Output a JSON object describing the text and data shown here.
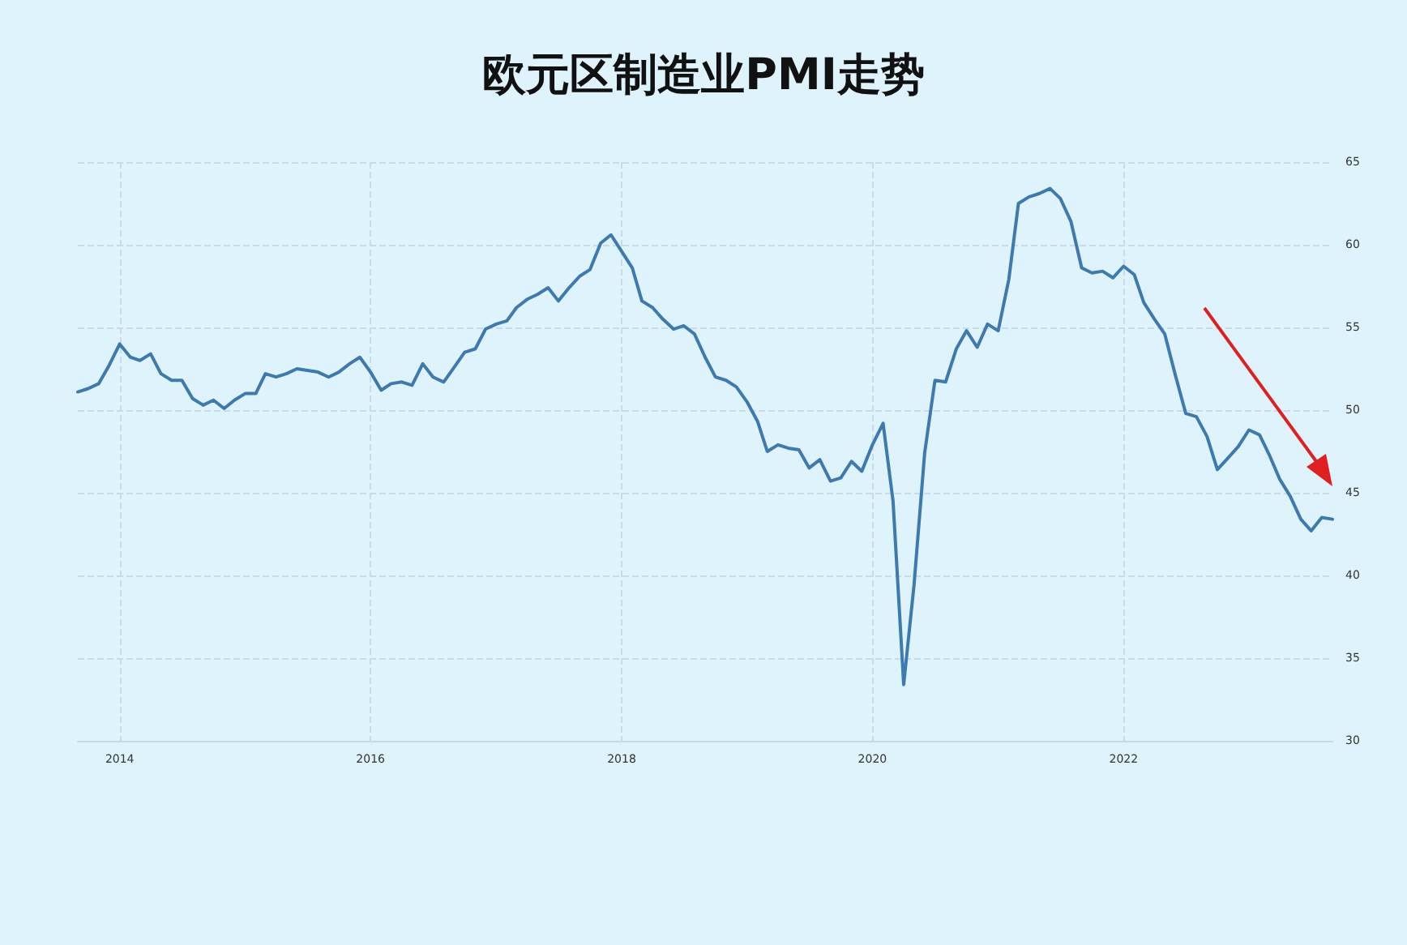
{
  "chart_data": {
    "type": "line",
    "title": "欧元区制造业PMI走势",
    "x": [
      "2013-09",
      "2013-10",
      "2013-11",
      "2013-12",
      "2014-01",
      "2014-02",
      "2014-03",
      "2014-04",
      "2014-05",
      "2014-06",
      "2014-07",
      "2014-08",
      "2014-09",
      "2014-10",
      "2014-11",
      "2014-12",
      "2015-01",
      "2015-02",
      "2015-03",
      "2015-04",
      "2015-05",
      "2015-06",
      "2015-07",
      "2015-08",
      "2015-09",
      "2015-10",
      "2015-11",
      "2015-12",
      "2016-01",
      "2016-02",
      "2016-03",
      "2016-04",
      "2016-05",
      "2016-06",
      "2016-07",
      "2016-08",
      "2016-09",
      "2016-10",
      "2016-11",
      "2016-12",
      "2017-01",
      "2017-02",
      "2017-03",
      "2017-04",
      "2017-05",
      "2017-06",
      "2017-07",
      "2017-08",
      "2017-09",
      "2017-10",
      "2017-11",
      "2017-12",
      "2018-01",
      "2018-02",
      "2018-03",
      "2018-04",
      "2018-05",
      "2018-06",
      "2018-07",
      "2018-08",
      "2018-09",
      "2018-10",
      "2018-11",
      "2018-12",
      "2019-01",
      "2019-02",
      "2019-03",
      "2019-04",
      "2019-05",
      "2019-06",
      "2019-07",
      "2019-08",
      "2019-09",
      "2019-10",
      "2019-11",
      "2019-12",
      "2020-01",
      "2020-02",
      "2020-03",
      "2020-04",
      "2020-05",
      "2020-06",
      "2020-07",
      "2020-08",
      "2020-09",
      "2020-10",
      "2020-11",
      "2020-12",
      "2021-01",
      "2021-02",
      "2021-03",
      "2021-04",
      "2021-05",
      "2021-06",
      "2021-07",
      "2021-08",
      "2021-09",
      "2021-10",
      "2021-11",
      "2021-12",
      "2022-01",
      "2022-02",
      "2022-03",
      "2022-04",
      "2022-05",
      "2022-06",
      "2022-07",
      "2022-08",
      "2022-09",
      "2022-10",
      "2022-11",
      "2022-12",
      "2023-01",
      "2023-02",
      "2023-03",
      "2023-04",
      "2023-05",
      "2023-06",
      "2023-07",
      "2023-08",
      "2023-09"
    ],
    "series": [
      {
        "color": "#3d7ab0",
        "values": [
          51.1,
          51.3,
          51.6,
          52.7,
          54.0,
          53.2,
          53.0,
          53.4,
          52.2,
          51.8,
          51.8,
          50.7,
          50.3,
          50.6,
          50.1,
          50.6,
          51.0,
          51.0,
          52.2,
          52.0,
          52.2,
          52.5,
          52.4,
          52.3,
          52.0,
          52.3,
          52.8,
          53.2,
          52.3,
          51.2,
          51.6,
          51.7,
          51.5,
          52.8,
          52.0,
          51.7,
          52.6,
          53.5,
          53.7,
          54.9,
          55.2,
          55.4,
          56.2,
          56.7,
          57.0,
          57.4,
          56.6,
          57.4,
          58.1,
          58.5,
          60.1,
          60.6,
          59.6,
          58.6,
          56.6,
          56.2,
          55.5,
          54.9,
          55.1,
          54.6,
          53.2,
          52.0,
          51.8,
          51.4,
          50.5,
          49.3,
          47.5,
          47.9,
          47.7,
          47.6,
          46.5,
          47.0,
          45.7,
          45.9,
          46.9,
          46.3,
          47.9,
          49.2,
          44.5,
          33.4,
          39.4,
          47.4,
          51.8,
          51.7,
          53.7,
          54.8,
          53.8,
          55.2,
          54.8,
          57.9,
          62.5,
          62.9,
          63.1,
          63.4,
          62.8,
          61.4,
          58.6,
          58.3,
          58.4,
          58.0,
          58.7,
          58.2,
          56.5,
          55.5,
          54.6,
          52.1,
          49.8,
          49.6,
          48.4,
          46.4,
          47.1,
          47.8,
          48.8,
          48.5,
          47.3,
          45.8,
          44.8,
          43.4,
          42.7,
          43.5,
          43.4
        ]
      }
    ],
    "xlim": [
      "2013-09",
      "2023-09"
    ],
    "xticks": [
      "2014",
      "2016",
      "2018",
      "2020",
      "2022"
    ],
    "ylim": [
      30,
      65
    ],
    "yticks": [
      30,
      35,
      40,
      45,
      50,
      55,
      60,
      65
    ],
    "grid": true,
    "marker": "none",
    "line_style": "solid"
  }
}
